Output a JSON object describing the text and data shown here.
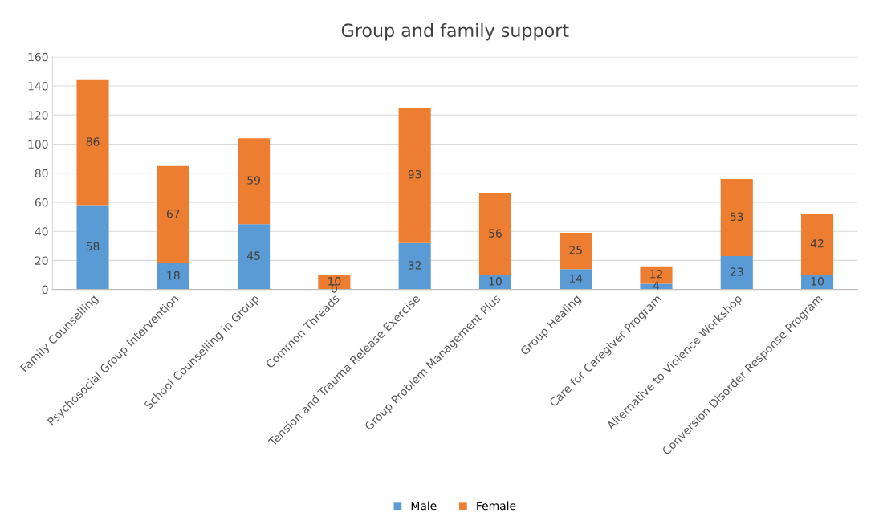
{
  "chart_data": {
    "type": "bar",
    "title": "Group and family support",
    "stacked": true,
    "data_labels": true,
    "categories": [
      "Family Counselling",
      "Psychosocial Group Intervention",
      "School Counselling in Group",
      "Common Threads",
      "Tension and Trauma Release Exercise",
      "Group Problem Management Plus",
      "Group Healing",
      "Care for Caregiver Program",
      "Alternative to Violence Workshop",
      "Conversion Disorder Response Program"
    ],
    "series": [
      {
        "name": "Male",
        "color": "#5b9bd5",
        "values": [
          58,
          18,
          45,
          0,
          32,
          10,
          14,
          4,
          23,
          10
        ]
      },
      {
        "name": "Female",
        "color": "#ed7d31",
        "values": [
          86,
          67,
          59,
          10,
          93,
          56,
          25,
          12,
          53,
          42
        ]
      }
    ],
    "ylim": [
      0,
      160
    ],
    "yticks": [
      0,
      20,
      40,
      60,
      80,
      100,
      120,
      140,
      160
    ],
    "grid": "y",
    "legend": "bottom"
  }
}
